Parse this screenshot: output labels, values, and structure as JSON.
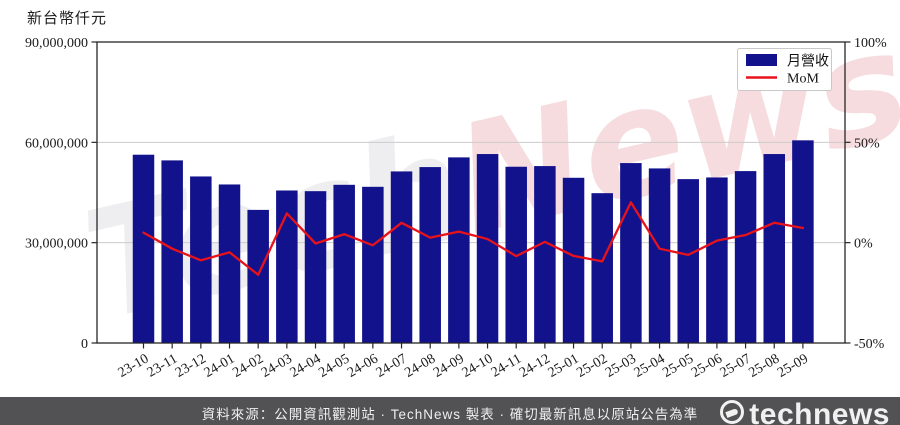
{
  "chart": {
    "unit_label": "新台幣仟元"
  },
  "chart_data": {
    "type": "bar+line",
    "title": "",
    "xlabel": "",
    "ylabel_left": "新台幣仟元",
    "ylabel_right": "%",
    "ylim_left": [
      0,
      90000000
    ],
    "ylim_right": [
      -50,
      100
    ],
    "grid_values_left": [
      30000000,
      60000000
    ],
    "legend_position": "top-right",
    "categories": [
      "23-10",
      "23-11",
      "23-12",
      "24-01",
      "24-02",
      "24-03",
      "24-04",
      "24-05",
      "24-06",
      "24-07",
      "24-08",
      "24-09",
      "24-10",
      "24-11",
      "24-12",
      "25-01",
      "25-02",
      "25-03",
      "25-04",
      "25-05",
      "25-06",
      "25-07",
      "25-08",
      "25-09"
    ],
    "series": [
      {
        "name": "月營收",
        "type": "bar",
        "axis": "left",
        "unit": "新台幣仟元",
        "values": [
          56300000,
          54600000,
          49800000,
          47400000,
          39800000,
          45600000,
          45400000,
          47300000,
          46700000,
          51300000,
          52600000,
          55500000,
          56500000,
          52700000,
          52900000,
          49400000,
          44800000,
          53800000,
          52200000,
          49000000,
          49500000,
          51400000,
          56500000,
          60600000
        ]
      },
      {
        "name": "MoM",
        "type": "line",
        "axis": "right",
        "unit": "%",
        "values": [
          5.0,
          -3.0,
          -8.8,
          -4.8,
          -16.0,
          14.6,
          -0.4,
          4.2,
          -1.3,
          9.9,
          2.5,
          5.5,
          1.8,
          -6.7,
          0.4,
          -6.6,
          -9.3,
          20.1,
          -3.0,
          -6.1,
          1.0,
          3.8,
          9.9,
          7.3
        ]
      }
    ],
    "y_left": {
      "ticks": [
        0,
        30000000,
        60000000,
        90000000
      ],
      "labels": [
        "0",
        "30,000,000",
        "60,000,000",
        "90,000,000"
      ]
    },
    "y_right": {
      "ticks": [
        -50,
        0,
        50,
        100
      ],
      "labels": [
        "-50%",
        "0%",
        "50%",
        "100%"
      ]
    },
    "colors": {
      "bar": "#13128d",
      "line": "#e8131a",
      "grid": "#cccccc",
      "axis": "#262626",
      "legend_border": "#c9c9c9"
    }
  },
  "watermark": {
    "part1": "Tech",
    "part2": "News"
  },
  "footer": {
    "text": "資料來源：公開資訊觀測站 · TechNews 製表 · 確切最新訊息以原站公告為準",
    "logo_text": "technews"
  }
}
